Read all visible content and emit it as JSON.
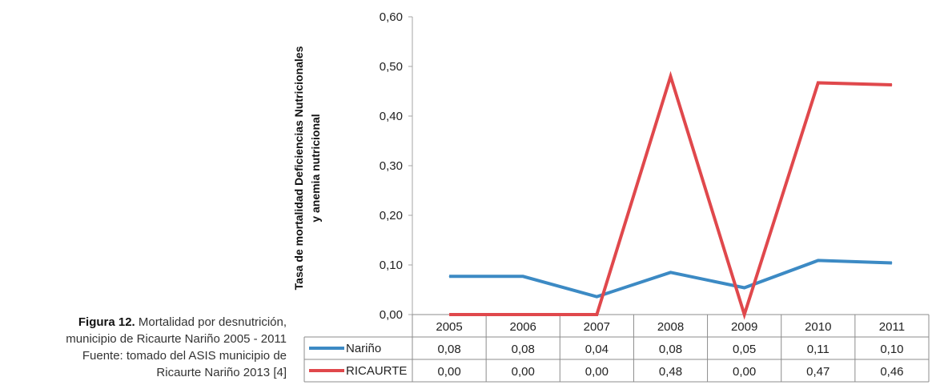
{
  "caption": {
    "label": "Figura 12.",
    "line1_rest": " Mortalidad por desnutrición,",
    "line2": "municipio de Ricaurte Nariño 2005 - 2011",
    "line3": "Fuente: tomado del ASIS municipio de",
    "line4": "Ricaurte Nariño 2013 [4]"
  },
  "chart_data": {
    "type": "line",
    "ylabel_line1": "Tasa de mortalidad Deficiencias Nutricionales",
    "ylabel_line2": "y anemia nutricional",
    "ylim": [
      0,
      0.6
    ],
    "yticks": [
      "0,00",
      "0,10",
      "0,20",
      "0,30",
      "0,40",
      "0,50",
      "0,60"
    ],
    "categories": [
      "2005",
      "2006",
      "2007",
      "2008",
      "2009",
      "2010",
      "2011"
    ],
    "grid": false,
    "legend": "data-table",
    "series": [
      {
        "name": "Nariño",
        "color": "#3c8ac4",
        "values": [
          0.077,
          0.077,
          0.036,
          0.085,
          0.054,
          0.109,
          0.104
        ],
        "labels": [
          "0,08",
          "0,08",
          "0,04",
          "0,08",
          "0,05",
          "0,11",
          "0,10"
        ]
      },
      {
        "name": "RICAURTE",
        "color": "#e0484c",
        "values": [
          0.0,
          0.0,
          0.0,
          0.48,
          0.0,
          0.467,
          0.463
        ],
        "labels": [
          "0,00",
          "0,00",
          "0,00",
          "0,48",
          "0,00",
          "0,47",
          "0,46"
        ]
      }
    ]
  }
}
